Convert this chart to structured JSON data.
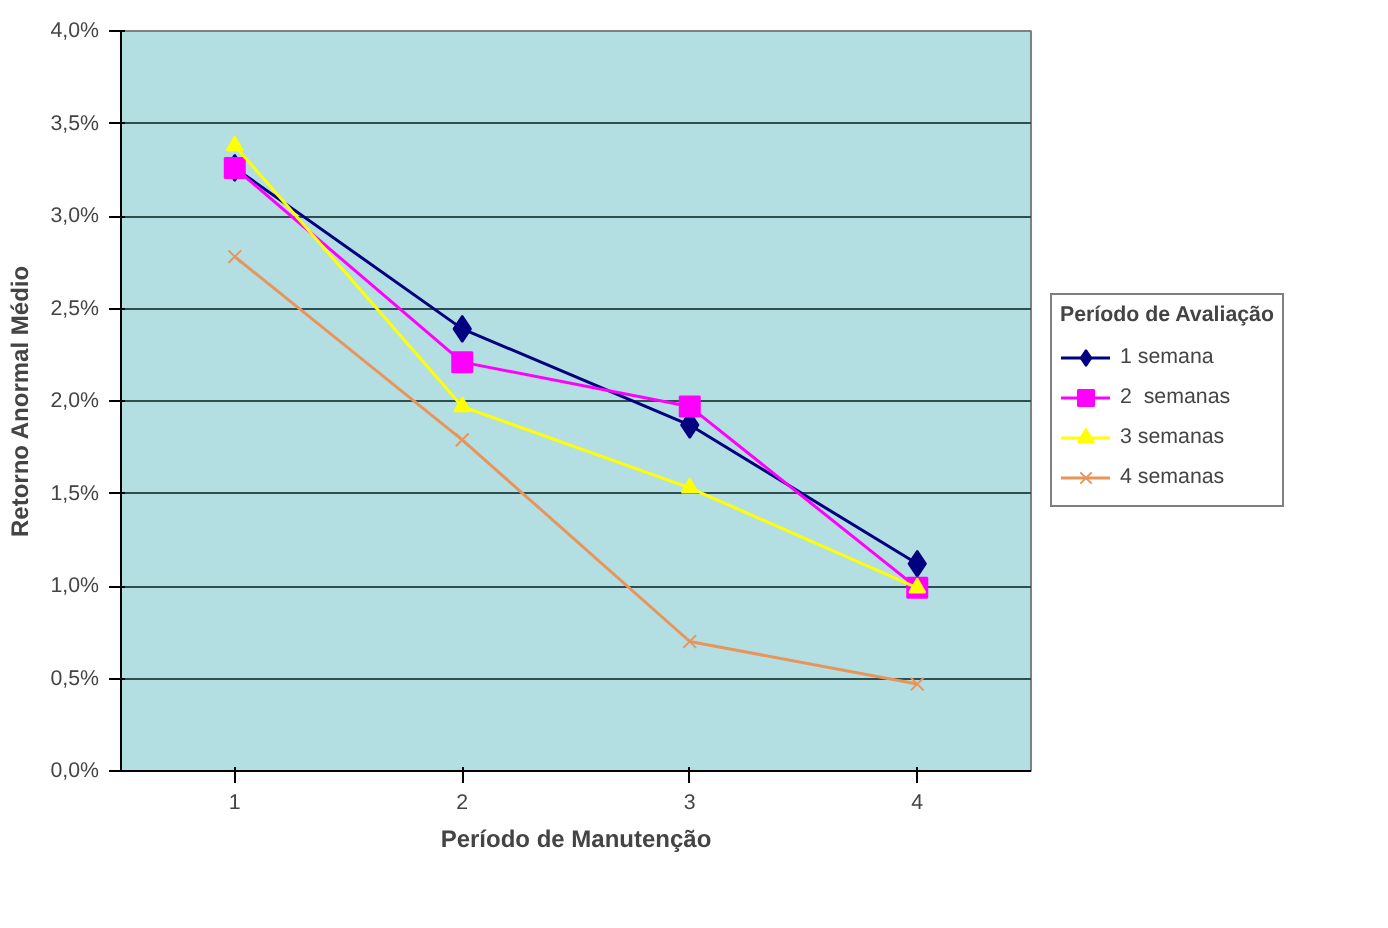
{
  "chart_data": {
    "type": "line",
    "xlabel": "Período de Manutenção",
    "ylabel": "Retorno Anormal Médio",
    "legend_title": "Período de Avaliação",
    "categories": [
      "1",
      "2",
      "3",
      "4"
    ],
    "series": [
      {
        "name": "1 semana",
        "color": "#000080",
        "marker": "diamond",
        "values": [
          3.26,
          2.39,
          1.87,
          1.12
        ]
      },
      {
        "name": "2  semanas",
        "color": "#ff00ff",
        "marker": "square",
        "values": [
          3.26,
          2.21,
          1.97,
          0.99
        ]
      },
      {
        "name": "3 semanas",
        "color": "#ffff00",
        "marker": "triangle",
        "values": [
          3.38,
          1.97,
          1.53,
          0.99
        ]
      },
      {
        "name": "4 semanas",
        "color": "#e8945a",
        "marker": "cross",
        "values": [
          2.78,
          1.79,
          0.7,
          0.47
        ]
      }
    ],
    "ylim": [
      0,
      4.0
    ],
    "yticks": [
      {
        "value": 0,
        "label": "0,0%"
      },
      {
        "value": 0.5,
        "label": "0,5%"
      },
      {
        "value": 1.0,
        "label": "1,0%"
      },
      {
        "value": 1.5,
        "label": "1,5%"
      },
      {
        "value": 2.0,
        "label": "2,0%"
      },
      {
        "value": 2.5,
        "label": "2,5%"
      },
      {
        "value": 3.0,
        "label": "3,0%"
      },
      {
        "value": 3.5,
        "label": "3,5%"
      },
      {
        "value": 4.0,
        "label": "4,0%"
      }
    ],
    "grid": "y",
    "legend": "right",
    "line_style": "solid"
  }
}
